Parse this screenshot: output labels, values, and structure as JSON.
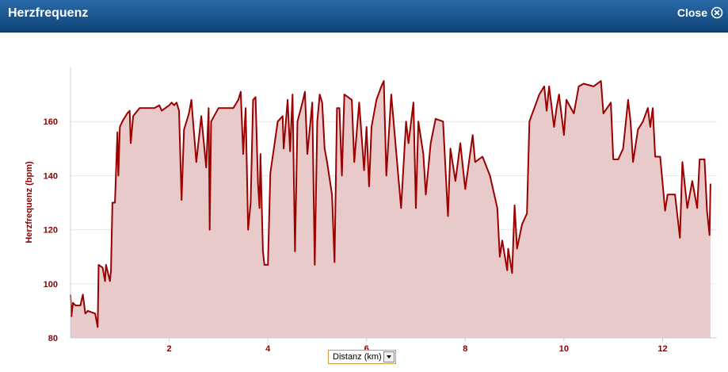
{
  "dialog": {
    "title": "Herzfrequenz",
    "close": "Close"
  },
  "chart_data": {
    "type": "area",
    "ylabel": "Herzfrequenz (bpm)",
    "xlabel": "Distanz (km)",
    "xlim": [
      0,
      13.1
    ],
    "ylim": [
      80,
      180
    ],
    "xticks": [
      2,
      4,
      6,
      8,
      10,
      12
    ],
    "yticks": [
      80,
      100,
      120,
      140,
      160
    ],
    "grid": true,
    "x": [
      0,
      0.02,
      0.05,
      0.1,
      0.2,
      0.25,
      0.3,
      0.35,
      0.5,
      0.55,
      0.57,
      0.65,
      0.7,
      0.72,
      0.8,
      0.82,
      0.85,
      0.9,
      0.95,
      0.97,
      1.0,
      1.05,
      1.15,
      1.2,
      1.22,
      1.27,
      1.4,
      1.7,
      1.8,
      1.85,
      2.0,
      2.05,
      2.1,
      2.15,
      2.2,
      2.25,
      2.3,
      2.4,
      2.45,
      2.55,
      2.65,
      2.75,
      2.8,
      2.82,
      2.85,
      3.0,
      3.3,
      3.4,
      3.45,
      3.5,
      3.55,
      3.6,
      3.65,
      3.7,
      3.75,
      3.8,
      3.83,
      3.85,
      3.9,
      3.93,
      4.0,
      4.05,
      4.2,
      4.3,
      4.32,
      4.4,
      4.45,
      4.5,
      4.55,
      4.6,
      4.7,
      4.75,
      4.8,
      4.9,
      4.95,
      5.0,
      5.05,
      5.1,
      5.15,
      5.2,
      5.3,
      5.35,
      5.4,
      5.45,
      5.5,
      5.55,
      5.7,
      5.75,
      5.85,
      5.95,
      6.0,
      6.05,
      6.1,
      6.2,
      6.3,
      6.35,
      6.4,
      6.45,
      6.5,
      6.7,
      6.8,
      6.85,
      6.95,
      7.0,
      7.05,
      7.15,
      7.2,
      7.3,
      7.4,
      7.55,
      7.65,
      7.7,
      7.8,
      7.9,
      8.0,
      8.15,
      8.2,
      8.35,
      8.5,
      8.65,
      8.7,
      8.75,
      8.85,
      8.87,
      8.95,
      9.0,
      9.05,
      9.15,
      9.25,
      9.3,
      9.5,
      9.6,
      9.65,
      9.7,
      9.8,
      9.85,
      9.9,
      10.0,
      10.05,
      10.2,
      10.3,
      10.4,
      10.6,
      10.75,
      10.8,
      10.95,
      11.0,
      11.1,
      11.2,
      11.3,
      11.35,
      11.4,
      11.5,
      11.6,
      11.7,
      11.75,
      11.8,
      11.85,
      11.95,
      12.05,
      12.1,
      12.25,
      12.35,
      12.4,
      12.5,
      12.6,
      12.7,
      12.75,
      12.85,
      12.9,
      12.95,
      12.97
    ],
    "series": [
      {
        "color": "#9a0000",
        "fill": "#e8caca",
        "values": [
          96,
          88,
          93,
          92,
          92,
          96,
          89,
          90,
          89,
          84,
          107,
          106,
          101,
          107,
          101,
          105,
          130,
          130,
          156,
          140,
          158,
          160,
          163,
          164,
          152,
          162,
          165,
          165,
          166,
          164,
          166,
          167,
          166,
          167,
          164,
          131,
          157,
          163,
          168,
          145,
          162,
          143,
          165,
          120,
          160,
          165,
          165,
          168,
          171,
          148,
          165,
          120,
          130,
          168,
          169,
          137,
          128,
          148,
          112,
          107,
          107,
          141,
          160,
          162,
          150,
          168,
          149,
          170,
          112,
          160,
          167,
          171,
          148,
          167,
          107,
          160,
          170,
          167,
          150,
          145,
          133,
          108,
          165,
          165,
          140,
          170,
          168,
          145,
          167,
          142,
          158,
          136,
          158,
          168,
          173,
          175,
          140,
          155,
          170,
          128,
          160,
          152,
          167,
          128,
          160,
          148,
          133,
          152,
          161,
          160,
          125,
          150,
          138,
          152,
          135,
          155,
          145,
          147,
          140,
          128,
          110,
          116,
          105,
          113,
          104,
          129,
          113,
          122,
          126,
          160,
          170,
          173,
          164,
          173,
          158,
          165,
          170,
          155,
          168,
          163,
          173,
          174,
          173,
          175,
          163,
          167,
          146,
          146,
          150,
          168,
          160,
          145,
          157,
          160,
          165,
          158,
          165,
          147,
          147,
          127,
          133,
          133,
          117,
          145,
          128,
          138,
          128,
          146,
          146,
          127,
          118,
          137
        ]
      }
    ]
  }
}
